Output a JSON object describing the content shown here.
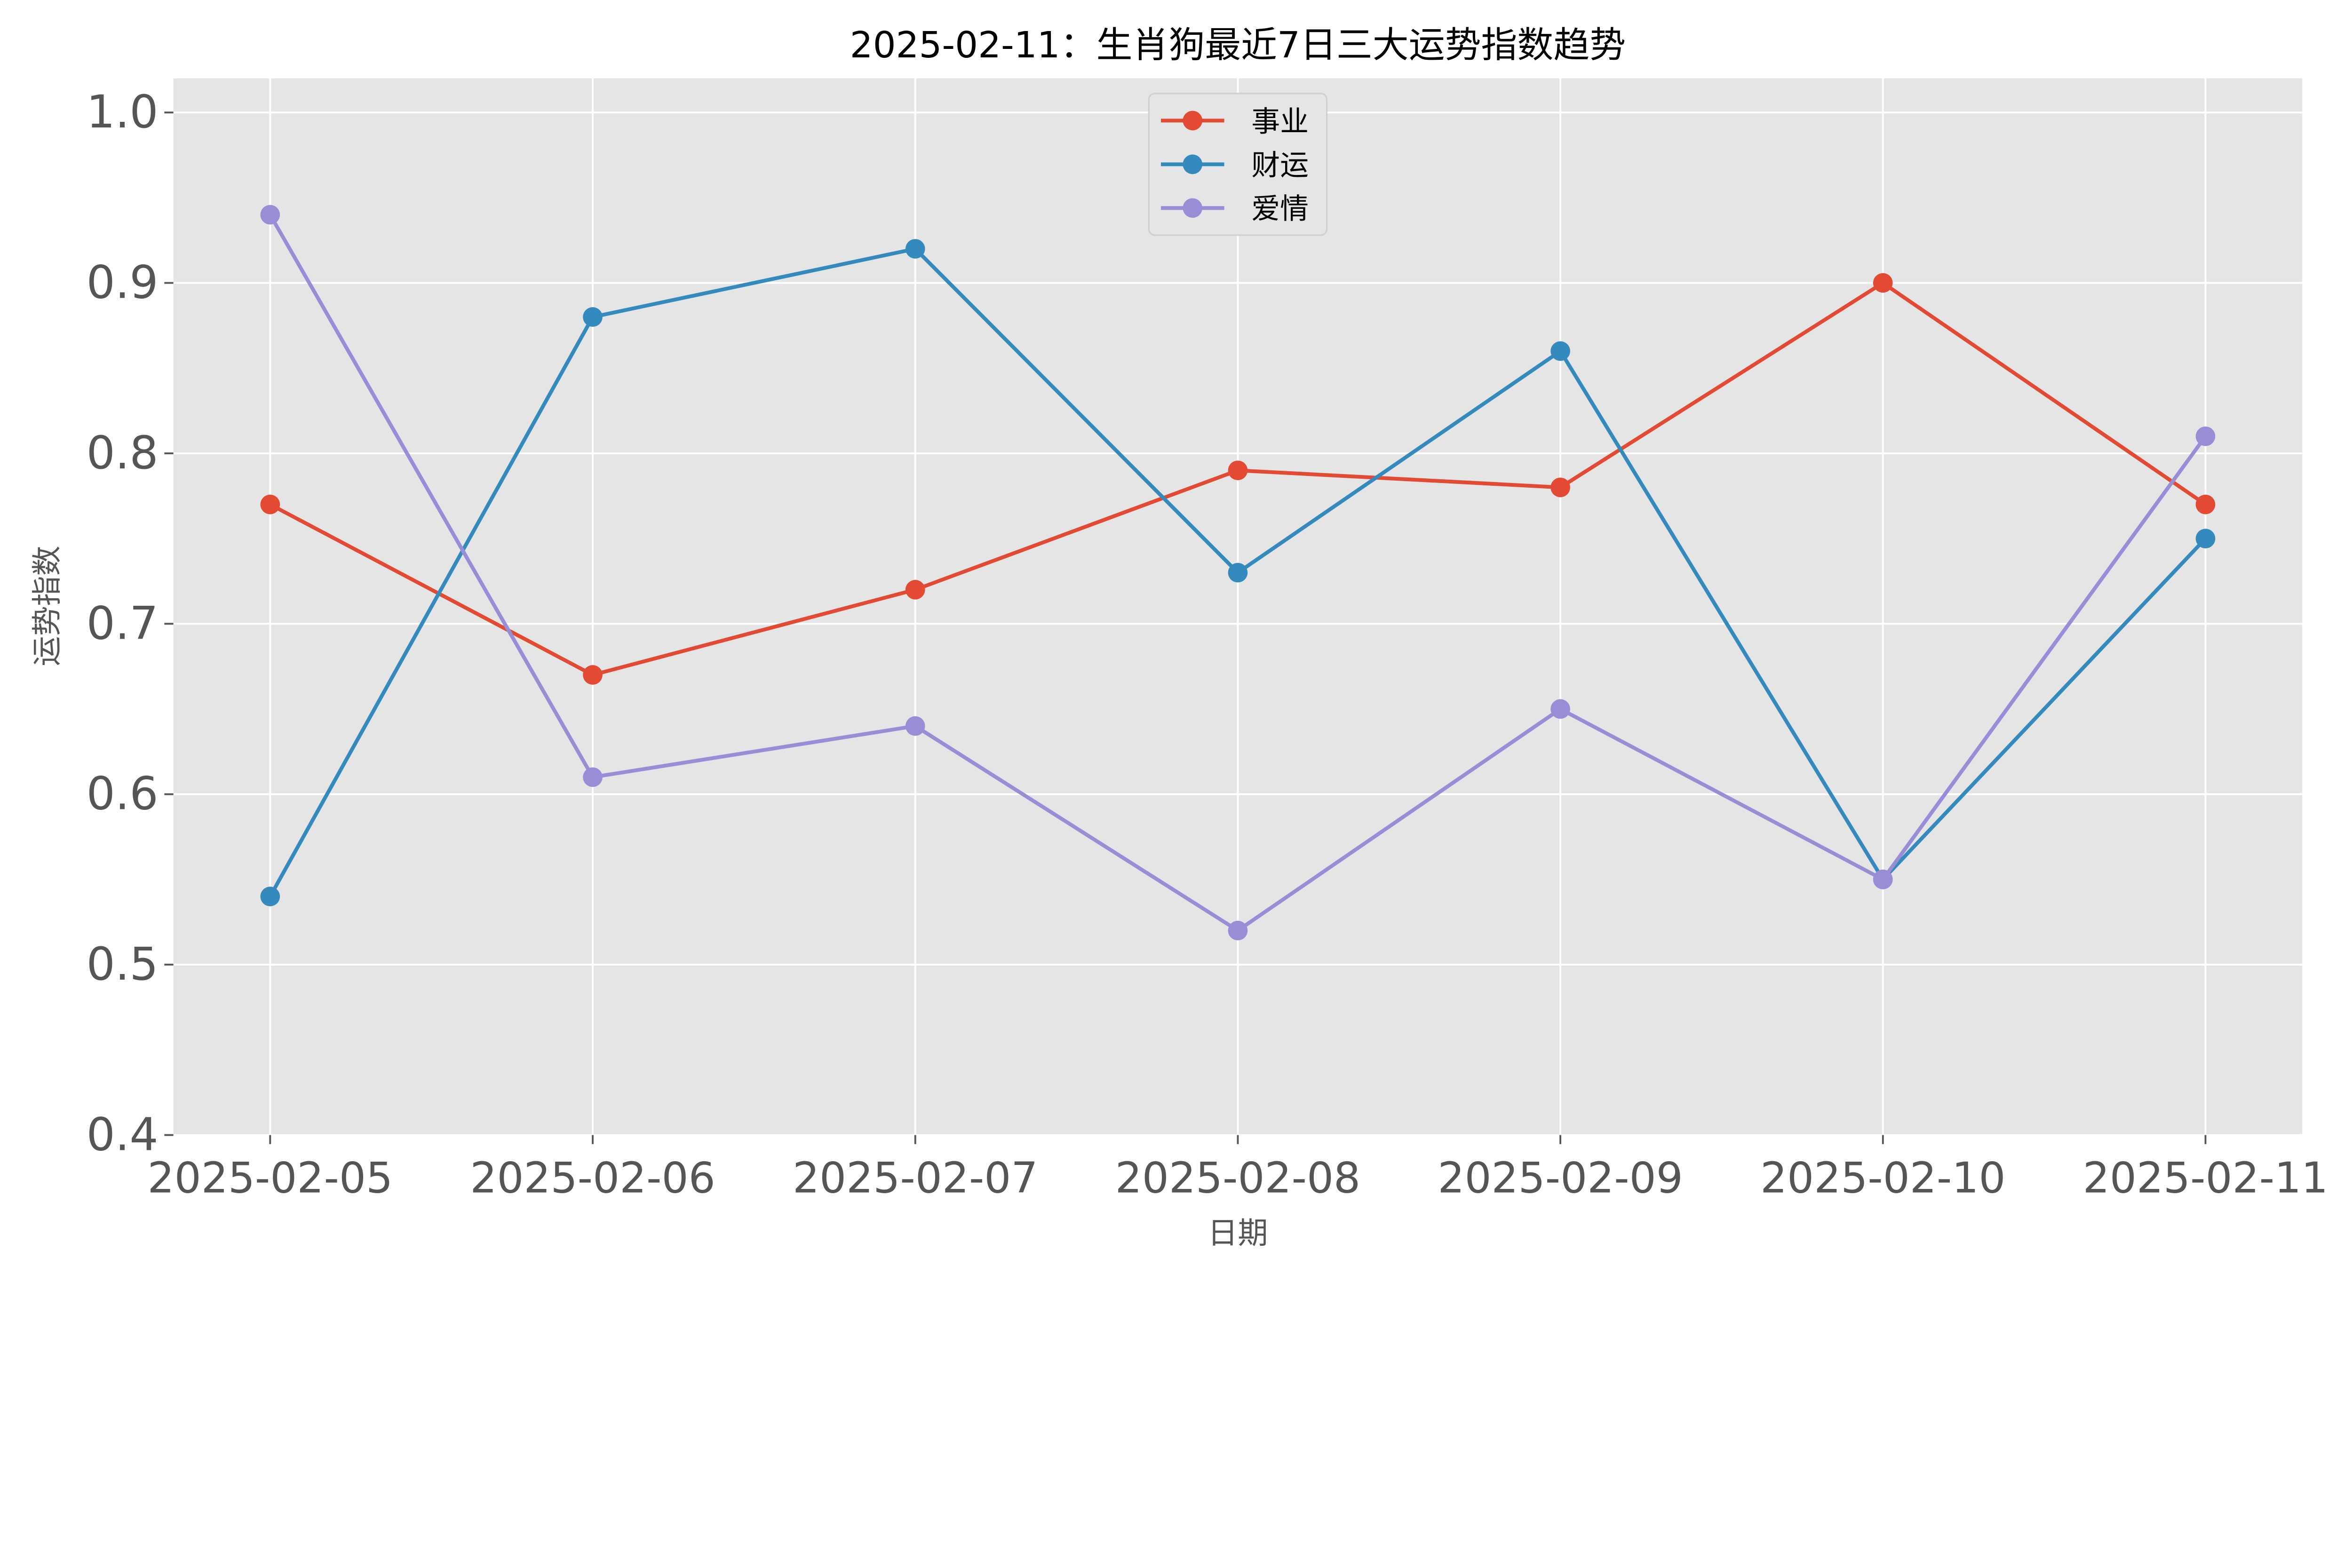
{
  "chart_data": {
    "type": "line",
    "title": "2025-02-11：生肖狗最近7日三大运势指数趋势",
    "xlabel": "日期",
    "ylabel": "运势指数",
    "categories": [
      "2025-02-05",
      "2025-02-06",
      "2025-02-07",
      "2025-02-08",
      "2025-02-09",
      "2025-02-10",
      "2025-02-11"
    ],
    "ylim": [
      0.4,
      1.02
    ],
    "yticks": [
      "0.4",
      "0.5",
      "0.6",
      "0.7",
      "0.8",
      "0.9",
      "1.0"
    ],
    "grid": true,
    "legend_position": "top-center",
    "series": [
      {
        "name": "事业",
        "color": "#E24A33",
        "values": [
          0.77,
          0.67,
          0.72,
          0.79,
          0.78,
          0.9,
          0.77
        ]
      },
      {
        "name": "财运",
        "color": "#348ABD",
        "values": [
          0.54,
          0.88,
          0.92,
          0.73,
          0.86,
          0.55,
          0.75
        ]
      },
      {
        "name": "爱情",
        "color": "#988ED5",
        "values": [
          0.94,
          0.61,
          0.64,
          0.52,
          0.65,
          0.55,
          0.81
        ]
      }
    ]
  }
}
